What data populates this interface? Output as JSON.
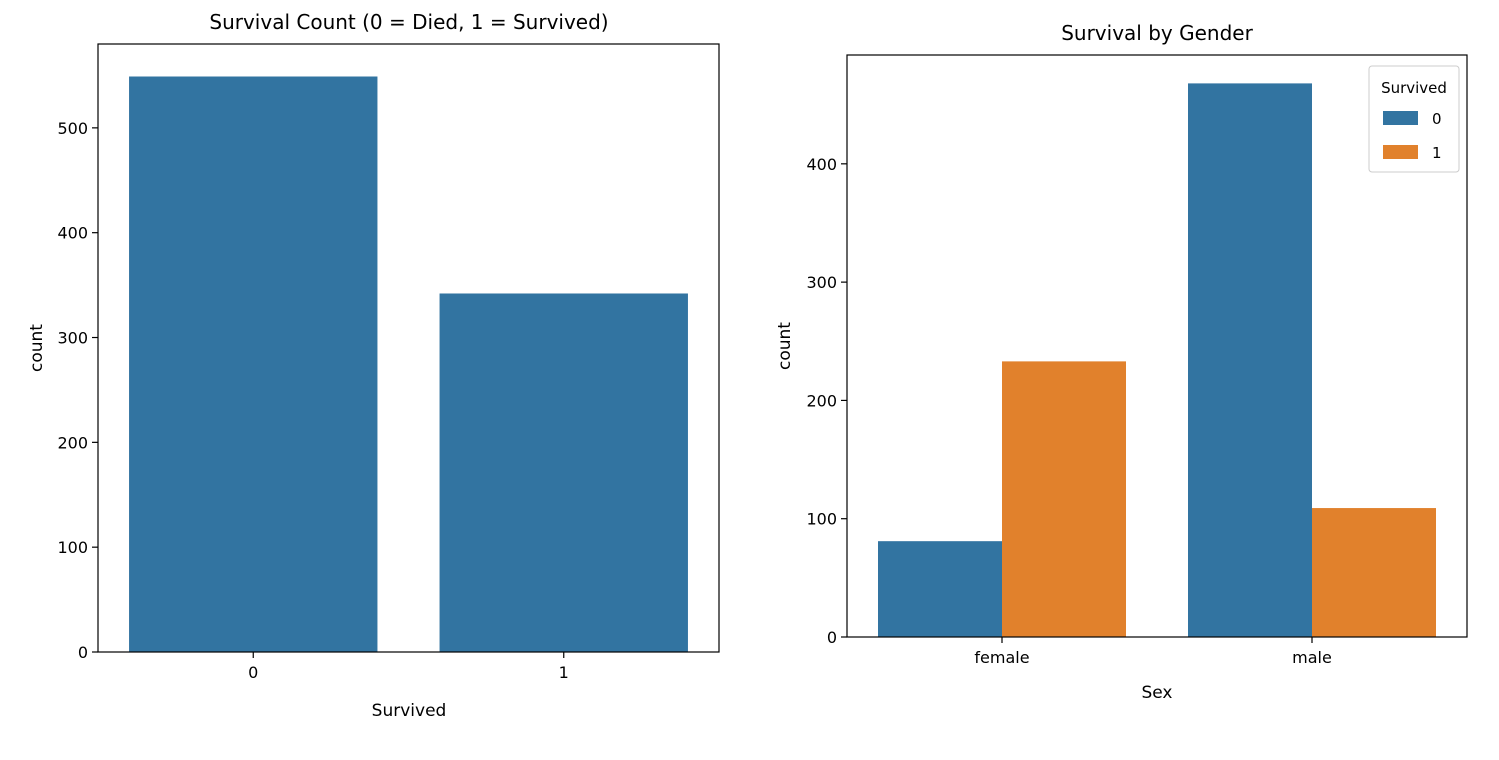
{
  "chart_data": [
    {
      "type": "bar",
      "title": "Survival Count (0 = Died, 1 = Survived)",
      "xlabel": "Survived",
      "ylabel": "count",
      "categories": [
        "0",
        "1"
      ],
      "values": [
        549,
        342
      ],
      "ylim": [
        0,
        580
      ],
      "yticks": [
        0,
        100,
        200,
        300,
        400,
        500
      ],
      "color": "#3274a1",
      "grid": false
    },
    {
      "type": "bar",
      "title": "Survival by Gender",
      "xlabel": "Sex",
      "ylabel": "count",
      "categories": [
        "female",
        "male"
      ],
      "series": [
        {
          "name": "0",
          "values": [
            81,
            468
          ],
          "color": "#3274a1"
        },
        {
          "name": "1",
          "values": [
            233,
            109
          ],
          "color": "#e1812c"
        }
      ],
      "ylim": [
        0,
        492
      ],
      "yticks": [
        0,
        100,
        200,
        300,
        400
      ],
      "legend": {
        "title": "Survived",
        "position": "top-right"
      },
      "grid": false
    }
  ]
}
